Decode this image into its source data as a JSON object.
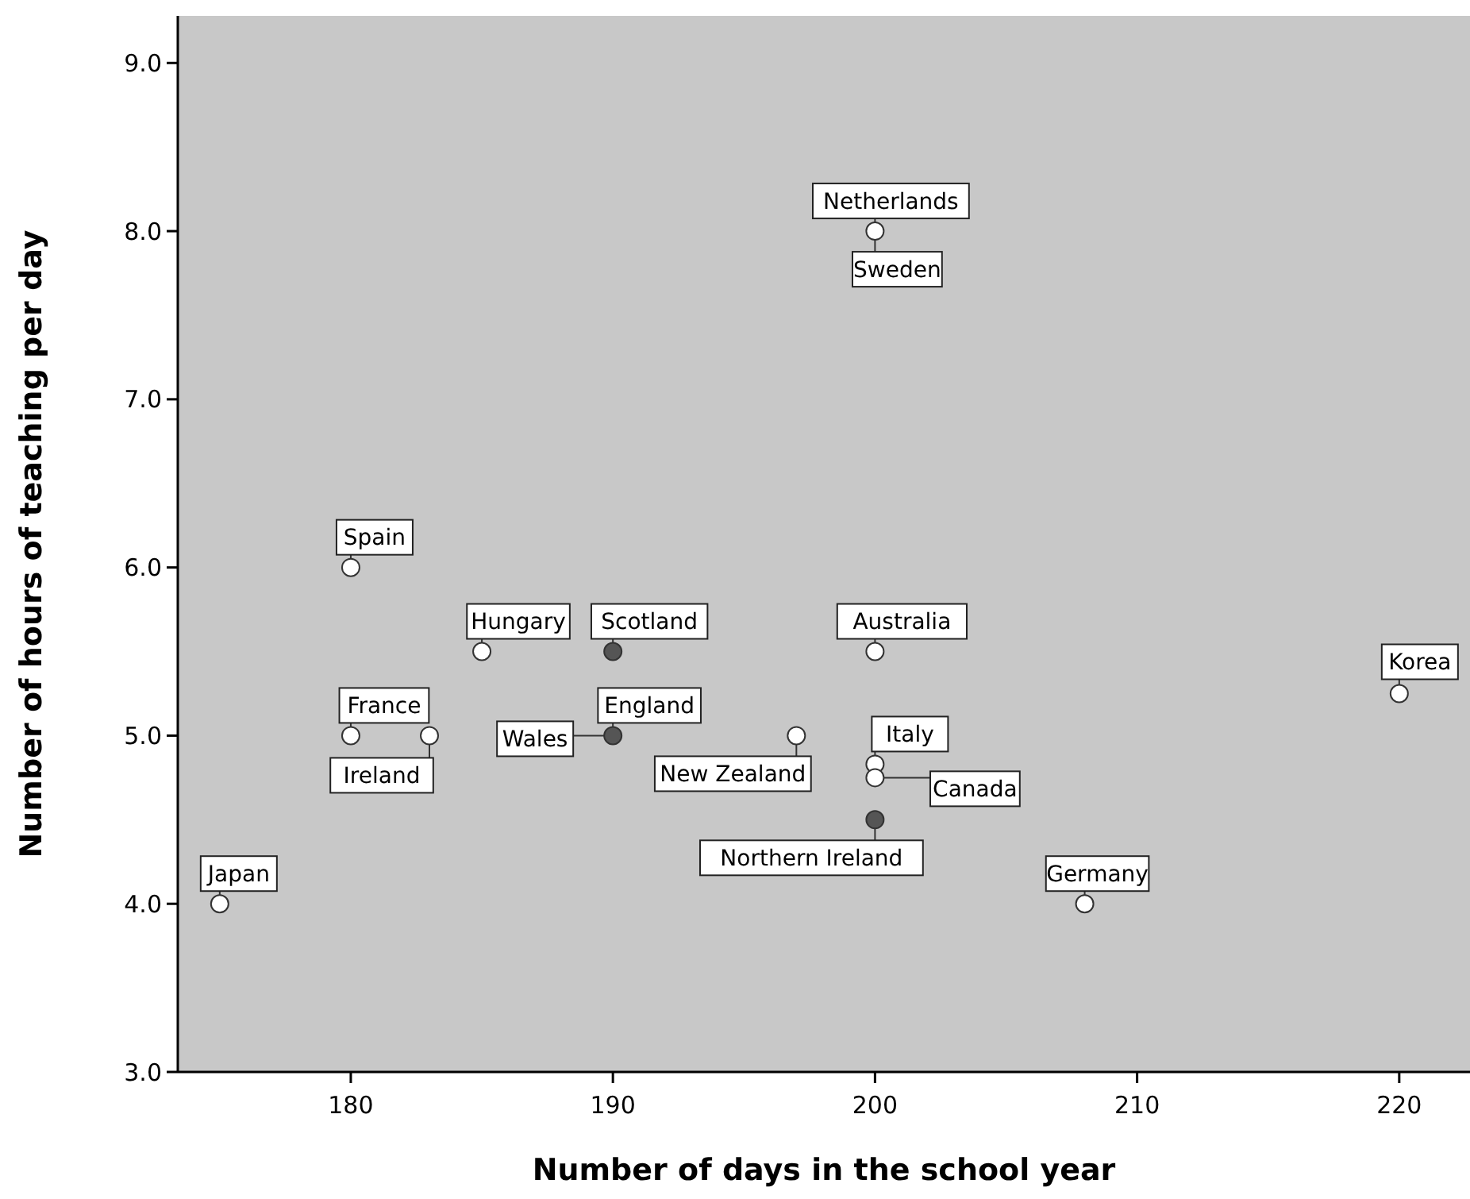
{
  "chart_data": {
    "type": "scatter",
    "xlabel": "Number of days in the school year",
    "ylabel": "Number of hours of teaching per day",
    "xlim": [
      173.4,
      222.7
    ],
    "xticks": [
      180,
      190,
      200,
      210,
      220
    ],
    "ylim": [
      3.0,
      9.28
    ],
    "yticks": [
      {
        "value": 3,
        "label": "3.0"
      },
      {
        "value": 4,
        "label": "4.0"
      },
      {
        "value": 5,
        "label": "5.0"
      },
      {
        "value": 6,
        "label": "6.0"
      },
      {
        "value": 7,
        "label": "7.0"
      },
      {
        "value": 8,
        "label": "8.0"
      },
      {
        "value": 9,
        "label": "9.0"
      }
    ],
    "marker": "circle",
    "series": [
      {
        "color": "#ffffff",
        "x": [
          175,
          180,
          180,
          183,
          185,
          197,
          200,
          200,
          200,
          200,
          208,
          220
        ],
        "values": [
          4.0,
          6.0,
          5.0,
          5.0,
          5.5,
          5.0,
          5.5,
          8.0,
          4.83,
          4.75,
          4.0,
          5.25
        ]
      },
      {
        "color": "#555555",
        "x": [
          190,
          190,
          200
        ],
        "values": [
          5.5,
          5.0,
          4.5
        ]
      }
    ],
    "annotations": [
      {
        "text": "Japan",
        "x": 175,
        "y": 4.0
      },
      {
        "text": "Spain",
        "x": 180,
        "y": 6.0
      },
      {
        "text": "France",
        "x": 180,
        "y": 5.0
      },
      {
        "text": "Ireland",
        "x": 183,
        "y": 5.0
      },
      {
        "text": "Hungary",
        "x": 185,
        "y": 5.5
      },
      {
        "text": "Scotland",
        "x": 190,
        "y": 5.5
      },
      {
        "text": "England",
        "x": 190,
        "y": 5.0
      },
      {
        "text": "Wales",
        "x": 190,
        "y": 5.0
      },
      {
        "text": "New Zealand",
        "x": 197,
        "y": 5.0
      },
      {
        "text": "Australia",
        "x": 200,
        "y": 5.5
      },
      {
        "text": "Netherlands",
        "x": 200,
        "y": 8.0
      },
      {
        "text": "Sweden",
        "x": 200,
        "y": 8.0
      },
      {
        "text": "Italy",
        "x": 200,
        "y": 4.83
      },
      {
        "text": "Canada",
        "x": 200,
        "y": 4.75
      },
      {
        "text": "Northern Ireland",
        "x": 200,
        "y": 4.5
      },
      {
        "text": "Germany",
        "x": 208,
        "y": 4.0
      },
      {
        "text": "Korea",
        "x": 220,
        "y": 5.25
      }
    ]
  }
}
